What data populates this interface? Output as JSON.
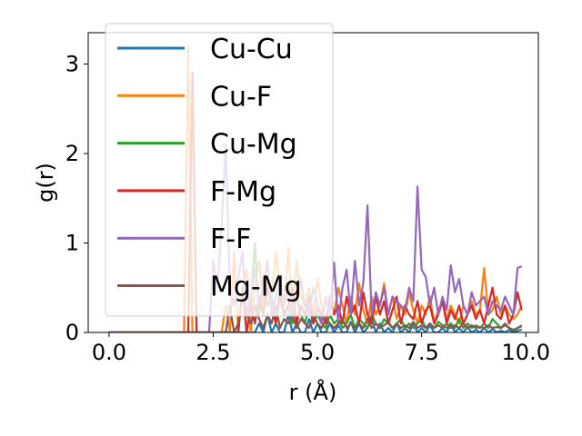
{
  "chart_data": {
    "type": "line",
    "title": "",
    "xlabel": "r (Å)",
    "ylabel": "g(r)",
    "xlim": [
      -0.5,
      10.3
    ],
    "ylim": [
      0,
      3.35
    ],
    "xticks": [
      0.0,
      2.5,
      5.0,
      7.5,
      10.0
    ],
    "xtick_labels": [
      "0.0",
      "2.5",
      "5.0",
      "7.5",
      "10.0"
    ],
    "yticks": [
      0,
      1,
      2,
      3
    ],
    "ytick_labels": [
      "0",
      "1",
      "2",
      "3"
    ],
    "grid": false,
    "legend_position": "upper-left",
    "x": [
      0.0,
      0.1,
      0.2,
      0.3,
      0.4,
      0.5,
      0.6,
      0.7,
      0.8,
      0.9,
      1.0,
      1.1,
      1.2,
      1.3,
      1.4,
      1.5,
      1.6,
      1.7,
      1.8,
      1.9,
      2.0,
      2.1,
      2.2,
      2.3,
      2.4,
      2.5,
      2.6,
      2.7,
      2.8,
      2.9,
      3.0,
      3.1,
      3.2,
      3.3,
      3.4,
      3.5,
      3.6,
      3.7,
      3.8,
      3.9,
      4.0,
      4.1,
      4.2,
      4.3,
      4.4,
      4.5,
      4.6,
      4.7,
      4.8,
      4.9,
      5.0,
      5.1,
      5.2,
      5.3,
      5.4,
      5.5,
      5.6,
      5.7,
      5.8,
      5.9,
      6.0,
      6.1,
      6.2,
      6.3,
      6.4,
      6.5,
      6.6,
      6.7,
      6.8,
      6.9,
      7.0,
      7.1,
      7.2,
      7.3,
      7.4,
      7.5,
      7.6,
      7.7,
      7.8,
      7.9,
      8.0,
      8.1,
      8.2,
      8.3,
      8.4,
      8.5,
      8.6,
      8.7,
      8.8,
      8.9,
      9.0,
      9.1,
      9.2,
      9.3,
      9.4,
      9.5,
      9.6,
      9.7,
      9.8,
      9.9
    ],
    "series": [
      {
        "name": "Cu-Cu",
        "color": "#1f77b4",
        "values": [
          0,
          0,
          0,
          0,
          0,
          0,
          0,
          0,
          0,
          0,
          0,
          0,
          0,
          0,
          0,
          0,
          0,
          0,
          0,
          0,
          0,
          0,
          0,
          0,
          0,
          0,
          0,
          0,
          0,
          0,
          0,
          0,
          0,
          0,
          0,
          0,
          0.1,
          0,
          0.2,
          0,
          0.1,
          0,
          0,
          0.2,
          0,
          0.1,
          0,
          0,
          0.15,
          0,
          0.1,
          0,
          0,
          0.1,
          0,
          0.08,
          0,
          0,
          0.12,
          0,
          0.1,
          0,
          0.05,
          0.15,
          0,
          0.1,
          0,
          0.05,
          0,
          0.1,
          0,
          0.05,
          0,
          0.1,
          0,
          0.05,
          0,
          0.08,
          0,
          0,
          0.05,
          0,
          0.1,
          0,
          0.05,
          0,
          0.06,
          0,
          0.03,
          0,
          0.05,
          0,
          0.04,
          0,
          0.02,
          0,
          0.03,
          0,
          0.02,
          0.03
        ]
      },
      {
        "name": "Cu-F",
        "color": "#ff7f0e",
        "values": [
          0,
          0,
          0,
          0,
          0,
          0,
          0,
          0,
          0,
          0,
          0,
          0,
          0,
          0,
          0,
          0,
          0,
          0,
          0,
          3.2,
          0,
          0,
          0,
          0,
          0,
          0,
          0,
          0,
          0.3,
          0,
          0.9,
          0,
          0.5,
          0.7,
          0,
          0.5,
          0.8,
          0.3,
          0.6,
          0.4,
          0.9,
          0.5,
          0.3,
          0.95,
          0.2,
          0.8,
          0.4,
          0.3,
          0.5,
          0.2,
          0.6,
          0.3,
          0.1,
          0.4,
          0.2,
          0.5,
          0.3,
          0.1,
          0.4,
          0.2,
          0.55,
          0.25,
          0.1,
          0.4,
          0.2,
          0.3,
          0.55,
          0.2,
          0.4,
          0.15,
          0.3,
          0.2,
          0.45,
          0.25,
          0.1,
          0.3,
          0.2,
          0.4,
          0.1,
          0.25,
          0.35,
          0.15,
          0.3,
          0.2,
          0.1,
          0.3,
          0.2,
          0.35,
          0.2,
          0.25,
          0.72,
          0.2,
          0.25,
          0.4,
          0.2,
          0.3,
          0.2,
          0.15,
          0.2,
          0.3
        ]
      },
      {
        "name": "Cu-Mg",
        "color": "#2ca02c",
        "values": [
          0,
          0,
          0,
          0,
          0,
          0,
          0,
          0,
          0,
          0,
          0,
          0,
          0,
          0,
          0,
          0,
          0,
          0,
          0,
          0,
          0,
          0,
          0,
          0,
          0,
          0,
          0,
          0,
          0,
          0,
          0,
          0,
          0.5,
          0,
          0.3,
          1.0,
          0.2,
          0.6,
          0.3,
          0.4,
          0.1,
          0.5,
          0.2,
          0.3,
          0.1,
          0.4,
          0.2,
          0.1,
          0.3,
          0.1,
          0.2,
          0.1,
          0.05,
          0.2,
          0.1,
          0.15,
          0.05,
          0.1,
          0.2,
          0.05,
          0.15,
          0.1,
          0.05,
          0.2,
          0.1,
          0.05,
          0.15,
          0.1,
          0.05,
          0.1,
          0.15,
          0.05,
          0.1,
          0.05,
          0.1,
          0.15,
          0.05,
          0.1,
          0.05,
          0.12,
          0.08,
          0.05,
          0.1,
          0.05,
          0.15,
          0.05,
          0.1,
          0.05,
          0.08,
          0.05,
          0.1,
          0.05,
          0.15,
          0.1,
          0.05,
          0.08,
          0.05,
          0.02,
          0.05,
          0.08
        ]
      },
      {
        "name": "F-Mg",
        "color": "#d62728",
        "values": [
          0,
          0,
          0,
          0,
          0,
          0,
          0,
          0,
          0,
          0,
          0,
          0,
          0,
          0,
          0,
          0,
          0,
          0,
          0,
          0,
          2.9,
          0,
          0,
          0,
          0,
          0,
          0,
          0,
          0,
          0,
          0,
          0,
          0.5,
          0,
          0.3,
          0.1,
          0.4,
          0.2,
          0.5,
          0.3,
          0.1,
          0.4,
          0.2,
          0.3,
          0.5,
          0.1,
          0.3,
          0.2,
          0.4,
          0.1,
          0.3,
          0.2,
          0.1,
          0.4,
          0.2,
          0.3,
          0.1,
          0.4,
          0.2,
          0.3,
          0.1,
          0.45,
          0.2,
          0.1,
          0.4,
          0.2,
          0.35,
          0.1,
          0.25,
          0.4,
          0.1,
          0.3,
          0.2,
          0.15,
          0.35,
          0.1,
          0.25,
          0.3,
          0.1,
          0.2,
          0.35,
          0.1,
          0.25,
          0.15,
          0.3,
          0.1,
          0.2,
          0.3,
          0.15,
          0.25,
          0.1,
          0.3,
          0.5,
          0.2,
          0.15,
          0.3,
          0.1,
          0.2,
          0.45,
          0.25
        ]
      },
      {
        "name": "F-F",
        "color": "#9467bd",
        "values": [
          0,
          0,
          0,
          0,
          0,
          0,
          0,
          0,
          0,
          0,
          0,
          0,
          0,
          0,
          0,
          0,
          0,
          0,
          0,
          0,
          0,
          0,
          0,
          0,
          0,
          0.8,
          0.5,
          1.2,
          2.1,
          0.5,
          0.3,
          0.6,
          0.9,
          0.2,
          0.4,
          0.7,
          0.3,
          0.5,
          0.8,
          0.2,
          0.4,
          0.6,
          0.3,
          0.5,
          0.2,
          0.4,
          0.6,
          0.3,
          0.2,
          0.5,
          0.3,
          0.1,
          0.4,
          0.2,
          0.78,
          0.1,
          0.5,
          0.7,
          0.2,
          0.8,
          0.3,
          0.55,
          1.42,
          0.2,
          0.45,
          0.3,
          0.5,
          0.2,
          0.4,
          0.35,
          0.3,
          0.25,
          0.5,
          0.35,
          1.63,
          0.7,
          0.62,
          0.3,
          0.5,
          0.2,
          0.4,
          0.25,
          0.75,
          0.45,
          0.6,
          0.3,
          0.2,
          0.45,
          0.3,
          0.35,
          0.4,
          0.2,
          0.35,
          0.3,
          0.25,
          0.4,
          0.3,
          0.2,
          0.72,
          0.74
        ]
      },
      {
        "name": "Mg-Mg",
        "color": "#8c564b",
        "values": [
          0,
          0,
          0,
          0,
          0,
          0,
          0,
          0,
          0,
          0,
          0,
          0,
          0,
          0,
          0,
          0,
          0,
          0,
          0,
          0,
          0,
          0,
          0,
          0,
          0,
          0,
          0,
          0,
          0,
          0.3,
          0,
          0.1,
          0.4,
          0.2,
          0.1,
          0.3,
          0.15,
          0.05,
          0.2,
          0.1,
          0.3,
          0.05,
          0.15,
          0.1,
          0.2,
          0.05,
          0.15,
          0.1,
          0.05,
          0.2,
          0.1,
          0.05,
          0.15,
          0.1,
          0.05,
          0.1,
          0.15,
          0.05,
          0.1,
          0.05,
          0.1,
          0.05,
          0.15,
          0.05,
          0.1,
          0.05,
          0.08,
          0.12,
          0.05,
          0.1,
          0.05,
          0.08,
          0.05,
          0.12,
          0.05,
          0.08,
          0.05,
          0.1,
          0.05,
          0.08,
          0.05,
          0.1,
          0.05,
          0.08,
          0.05,
          0.1,
          0.05,
          0.08,
          0.05,
          0.06,
          0.05,
          0.08,
          0.05,
          0.06,
          0.05,
          0.1,
          0.05,
          0.03,
          0.05,
          0.07
        ]
      }
    ]
  }
}
